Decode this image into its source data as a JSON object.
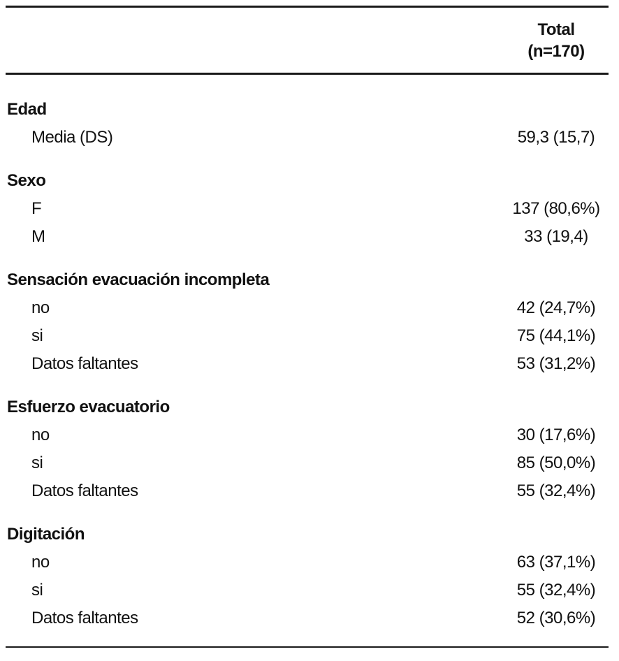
{
  "table": {
    "header": {
      "title": "Total",
      "subtitle": "(n=170)"
    },
    "sections": [
      {
        "label": "Edad",
        "rows": [
          {
            "label": "Media (DS)",
            "value": "59,3 (15,7)"
          }
        ]
      },
      {
        "label": "Sexo",
        "rows": [
          {
            "label": "F",
            "value": "137 (80,6%)"
          },
          {
            "label": "M",
            "value": "33 (19,4)"
          }
        ]
      },
      {
        "label": "Sensación evacuación incompleta",
        "rows": [
          {
            "label": "no",
            "value": "42 (24,7%)"
          },
          {
            "label": "si",
            "value": "75 (44,1%)"
          },
          {
            "label": "Datos faltantes",
            "value": "53 (31,2%)"
          }
        ]
      },
      {
        "label": "Esfuerzo evacuatorio",
        "rows": [
          {
            "label": "no",
            "value": "30 (17,6%)"
          },
          {
            "label": "si",
            "value": "85 (50,0%)"
          },
          {
            "label": "Datos faltantes",
            "value": "55 (32,4%)"
          }
        ]
      },
      {
        "label": "Digitación",
        "rows": [
          {
            "label": "no",
            "value": "63 (37,1%)"
          },
          {
            "label": "si",
            "value": "55 (32,4%)"
          },
          {
            "label": "Datos faltantes",
            "value": "52 (30,6%)"
          }
        ]
      }
    ],
    "colors": {
      "text": "#111111",
      "rule": "#1a1a1a",
      "background": "#ffffff"
    }
  }
}
